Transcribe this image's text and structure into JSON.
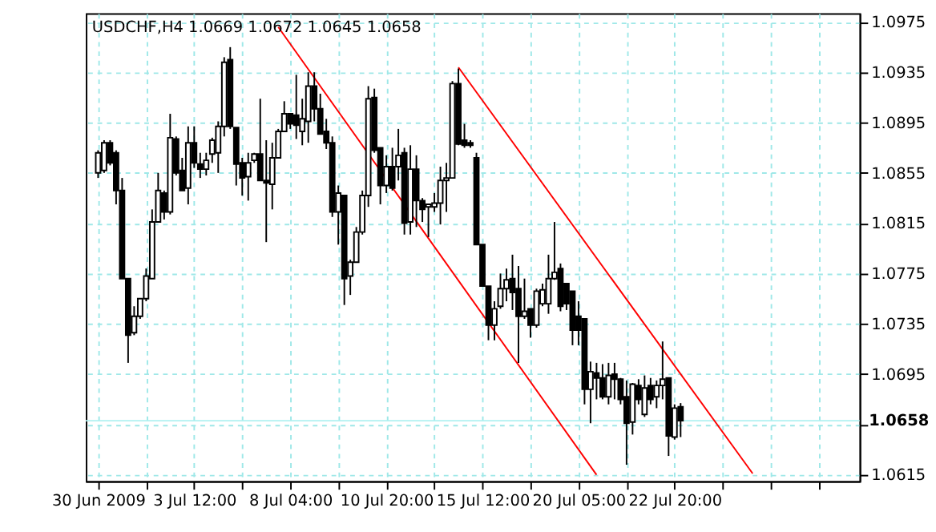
{
  "chart_data": {
    "type": "candlestick",
    "title": "USDCHF,H4  1.0669 1.0672 1.0645 1.0658",
    "categories": [
      "30 Jun 2009",
      null,
      null,
      null,
      null,
      null,
      null,
      null,
      null,
      null,
      null,
      null,
      null,
      null,
      null,
      null,
      "3 Jul 12:00",
      null,
      null,
      null,
      null,
      null,
      null,
      null,
      null,
      null,
      null,
      null,
      null,
      null,
      null,
      null,
      "8 Jul 04:00",
      null,
      null,
      null,
      null,
      null,
      null,
      null,
      null,
      null,
      null,
      null,
      null,
      null,
      null,
      null,
      "10 Jul 20:00",
      null,
      null,
      null,
      null,
      null,
      null,
      null,
      null,
      null,
      null,
      null,
      null,
      null,
      null,
      null,
      "15 Jul 12:00",
      null,
      null,
      null,
      null,
      null,
      null,
      null,
      null,
      null,
      null,
      null,
      null,
      null,
      null,
      null,
      "20 Jul 05:00",
      null,
      null,
      null,
      null,
      null,
      null,
      null,
      null,
      null,
      null,
      null,
      null,
      null,
      null,
      null,
      "22 Jul 20:00",
      null,
      null,
      null,
      null,
      null,
      null,
      null,
      null,
      null,
      null,
      null,
      null,
      null,
      null,
      null,
      null,
      null,
      null,
      null,
      null,
      null,
      null,
      null,
      null,
      null,
      null,
      null,
      null,
      null
    ],
    "ohlc": [
      [
        1.0855,
        1.0873,
        1.0851,
        1.0871
      ],
      [
        1.0857,
        1.0881,
        1.0855,
        1.0879
      ],
      [
        1.0879,
        1.0881,
        1.0861,
        1.0863
      ],
      [
        1.0871,
        1.0873,
        1.083,
        1.0841
      ],
      [
        1.0841,
        1.0851,
        1.0771,
        1.0771
      ],
      [
        1.0771,
        1.0771,
        1.0704,
        1.0726
      ],
      [
        1.0728,
        1.0749,
        1.0726,
        1.0741
      ],
      [
        1.0741,
        1.0755,
        1.0739,
        1.0755
      ],
      [
        1.0755,
        1.0779,
        1.0753,
        1.0773
      ],
      [
        1.0771,
        1.0826,
        1.0771,
        1.0816
      ],
      [
        1.0816,
        1.0855,
        1.0816,
        1.0841
      ],
      [
        1.0839,
        1.0841,
        1.0818,
        1.0824
      ],
      [
        1.0824,
        1.0902,
        1.0822,
        1.0883
      ],
      [
        1.0882,
        1.0884,
        1.0853,
        1.0855
      ],
      [
        1.0857,
        1.0867,
        1.0841,
        1.0841
      ],
      [
        1.0843,
        1.0892,
        1.083,
        1.0879
      ],
      [
        1.0879,
        1.0892,
        1.0859,
        1.0863
      ],
      [
        1.0862,
        1.0871,
        1.0851,
        1.0858
      ],
      [
        1.0858,
        1.0871,
        1.0853,
        1.0865
      ],
      [
        1.087,
        1.0883,
        1.0863,
        1.0881
      ],
      [
        1.0871,
        1.0896,
        1.0855,
        1.0892
      ],
      [
        1.0892,
        1.0947,
        1.0884,
        1.0943
      ],
      [
        1.0945,
        1.0955,
        1.089,
        1.0892
      ],
      [
        1.0891,
        1.0891,
        1.0845,
        1.0862
      ],
      [
        1.0863,
        1.0867,
        1.0837,
        1.0851
      ],
      [
        1.0852,
        1.0871,
        1.0833,
        1.0863
      ],
      [
        1.0865,
        1.0871,
        1.0863,
        1.087
      ],
      [
        1.087,
        1.0914,
        1.0849,
        1.0849
      ],
      [
        1.0849,
        1.0881,
        1.08,
        1.0847
      ],
      [
        1.0846,
        1.0879,
        1.0826,
        1.0867
      ],
      [
        1.0867,
        1.089,
        1.0867,
        1.0888
      ],
      [
        1.0888,
        1.0912,
        1.0888,
        1.0902
      ],
      [
        1.0902,
        1.0902,
        1.089,
        1.0894
      ],
      [
        1.0901,
        1.0933,
        1.0882,
        1.0893
      ],
      [
        1.0888,
        1.0914,
        1.0877,
        1.0898
      ],
      [
        1.0896,
        1.0935,
        1.0879,
        1.0924
      ],
      [
        1.0924,
        1.0935,
        1.0896,
        1.0906
      ],
      [
        1.0906,
        1.0918,
        1.0886,
        1.0886
      ],
      [
        1.0888,
        1.0898,
        1.0874,
        1.0879
      ],
      [
        1.0879,
        1.0884,
        1.082,
        1.0824
      ],
      [
        1.0824,
        1.0845,
        1.0798,
        1.0839
      ],
      [
        1.0837,
        1.0837,
        1.075,
        1.0771
      ],
      [
        1.0773,
        1.0786,
        1.0758,
        1.0784
      ],
      [
        1.0784,
        1.0812,
        1.0784,
        1.0808
      ],
      [
        1.0808,
        1.0841,
        1.0806,
        1.0837
      ],
      [
        1.0837,
        1.0924,
        1.0828,
        1.0914
      ],
      [
        1.0915,
        1.0922,
        1.0871,
        1.0873
      ],
      [
        1.0875,
        1.0875,
        1.083,
        1.0845
      ],
      [
        1.0845,
        1.0869,
        1.0839,
        1.086
      ],
      [
        1.086,
        1.0875,
        1.0841,
        1.0843
      ],
      [
        1.086,
        1.089,
        1.0849,
        1.0869
      ],
      [
        1.0871,
        1.0875,
        1.0806,
        1.0815
      ],
      [
        1.0816,
        1.0877,
        1.0806,
        1.0858
      ],
      [
        1.0858,
        1.0869,
        1.0812,
        1.0833
      ],
      [
        1.0833,
        1.0835,
        1.0816,
        1.0826
      ],
      [
        1.0828,
        1.083,
        1.0804,
        1.083
      ],
      [
        1.0828,
        1.0839,
        1.0824,
        1.0831
      ],
      [
        1.0831,
        1.086,
        1.0814,
        1.0849
      ],
      [
        1.0849,
        1.0863,
        1.0824,
        1.0851
      ],
      [
        1.0851,
        1.0928,
        1.0851,
        1.0926
      ],
      [
        1.0926,
        1.0938,
        1.0877,
        1.0878
      ],
      [
        1.0881,
        1.0894,
        1.0875,
        1.0877
      ],
      [
        1.0879,
        1.0881,
        1.0875,
        1.0877
      ],
      [
        1.0867,
        1.0871,
        1.0798,
        1.0798
      ],
      [
        1.0798,
        1.0798,
        1.0765,
        1.0765
      ],
      [
        1.0765,
        1.0765,
        1.0722,
        1.0734
      ],
      [
        1.0734,
        1.0753,
        1.0722,
        1.0747
      ],
      [
        1.0749,
        1.0775,
        1.0747,
        1.0763
      ],
      [
        1.0763,
        1.0779,
        1.0753,
        1.077
      ],
      [
        1.0771,
        1.079,
        1.0746,
        1.076
      ],
      [
        1.0763,
        1.0781,
        1.0704,
        1.0741
      ],
      [
        1.0741,
        1.0771,
        1.0739,
        1.0745
      ],
      [
        1.0747,
        1.0747,
        1.0724,
        1.0734
      ],
      [
        1.0734,
        1.0763,
        1.0732,
        1.0761
      ],
      [
        1.0751,
        1.0767,
        1.0749,
        1.0762
      ],
      [
        1.0751,
        1.079,
        1.0743,
        1.0771
      ],
      [
        1.0771,
        1.0816,
        1.077,
        1.0776
      ],
      [
        1.0779,
        1.0783,
        1.0745,
        1.0749
      ],
      [
        1.0767,
        1.0767,
        1.0746,
        1.0751
      ],
      [
        1.0761,
        1.0761,
        1.0718,
        1.073
      ],
      [
        1.0741,
        1.0753,
        1.0718,
        1.073
      ],
      [
        1.0739,
        1.0739,
        1.0671,
        1.0683
      ],
      [
        1.0683,
        1.0705,
        1.0656,
        1.0697
      ],
      [
        1.0696,
        1.0704,
        1.0675,
        1.0692
      ],
      [
        1.0692,
        1.0703,
        1.0675,
        1.0677
      ],
      [
        1.0677,
        1.0704,
        1.0671,
        1.0694
      ],
      [
        1.0695,
        1.0704,
        1.0675,
        1.0691
      ],
      [
        1.0691,
        1.0692,
        1.0671,
        1.0675
      ],
      [
        1.0677,
        1.069,
        1.0623,
        1.0656
      ],
      [
        1.0657,
        1.0688,
        1.0647,
        1.0687
      ],
      [
        1.0686,
        1.0691,
        1.0671,
        1.0675
      ],
      [
        1.0663,
        1.0694,
        1.0661,
        1.0684
      ],
      [
        1.0686,
        1.0692,
        1.0671,
        1.0675
      ],
      [
        1.0677,
        1.069,
        1.0668,
        1.0686
      ],
      [
        1.0686,
        1.0721,
        1.0675,
        1.0691
      ],
      [
        1.0692,
        1.0692,
        1.063,
        1.0646
      ],
      [
        1.0645,
        1.0671,
        1.0643,
        1.0668
      ],
      [
        1.0669,
        1.0672,
        1.0645,
        1.0658
      ],
      null,
      null,
      null,
      null,
      null,
      null,
      null,
      null,
      null,
      null,
      null,
      null,
      null,
      null,
      null,
      null,
      null,
      null,
      null,
      null,
      null,
      null,
      null,
      null,
      null,
      null,
      null,
      null
    ],
    "series": [
      {
        "type": "line",
        "color": "#ff0000",
        "values": [
          null,
          null,
          null,
          null,
          null,
          null,
          null,
          null,
          null,
          null,
          null,
          null,
          null,
          null,
          null,
          null,
          null,
          null,
          null,
          null,
          null,
          null,
          null,
          null,
          null,
          null,
          null,
          null,
          null,
          null,
          1.0971,
          null,
          null,
          null,
          null,
          null,
          null,
          null,
          null,
          null,
          null,
          null,
          null,
          null,
          null,
          null,
          null,
          null,
          null,
          null,
          null,
          null,
          null,
          null,
          null,
          null,
          null,
          null,
          null,
          null,
          null,
          null,
          null,
          null,
          null,
          null,
          null,
          null,
          null,
          null,
          null,
          null,
          null,
          null,
          null,
          null,
          null,
          null,
          null,
          null,
          null,
          null,
          null,
          1.0615,
          null,
          null,
          null,
          null,
          null,
          null,
          null,
          null,
          null,
          null,
          null,
          null,
          null,
          null,
          null,
          null,
          null,
          null,
          null,
          null,
          null,
          null,
          null,
          null,
          null,
          null,
          null,
          null,
          null,
          null,
          null,
          null,
          null,
          null,
          null,
          null,
          null,
          null,
          null,
          null,
          null,
          null
        ]
      },
      {
        "type": "line",
        "color": "#ff0000",
        "values": [
          null,
          null,
          null,
          null,
          null,
          null,
          null,
          null,
          null,
          null,
          null,
          null,
          null,
          null,
          null,
          null,
          null,
          null,
          null,
          null,
          null,
          null,
          null,
          null,
          null,
          null,
          null,
          null,
          null,
          null,
          null,
          null,
          null,
          null,
          null,
          null,
          null,
          null,
          null,
          null,
          null,
          null,
          null,
          null,
          null,
          null,
          null,
          null,
          null,
          null,
          null,
          null,
          null,
          null,
          null,
          null,
          null,
          null,
          null,
          null,
          1.0939,
          null,
          null,
          null,
          null,
          null,
          null,
          null,
          null,
          null,
          null,
          null,
          null,
          null,
          null,
          null,
          null,
          null,
          null,
          null,
          null,
          null,
          null,
          null,
          null,
          null,
          null,
          null,
          null,
          null,
          null,
          null,
          null,
          null,
          null,
          null,
          null,
          null,
          null,
          null,
          null,
          null,
          null,
          null,
          null,
          null,
          null,
          null,
          null,
          1.0616,
          null,
          null,
          null,
          null,
          null,
          null,
          null,
          null,
          null,
          null,
          null,
          null,
          null,
          null,
          null,
          null
        ]
      }
    ],
    "ylim": [
      1.061,
      1.0982
    ],
    "yticks": [
      1.0615,
      {
        "value": 1.0655,
        "label": null
      },
      1.0695,
      1.0735,
      1.0775,
      1.0815,
      1.0855,
      1.0895,
      1.0935,
      1.0975
    ],
    "ref_lines": [
      {
        "axis": "y",
        "value": 1.0658,
        "label": "1.0658",
        "color": "#b0f0f0"
      }
    ],
    "grid": true
  }
}
